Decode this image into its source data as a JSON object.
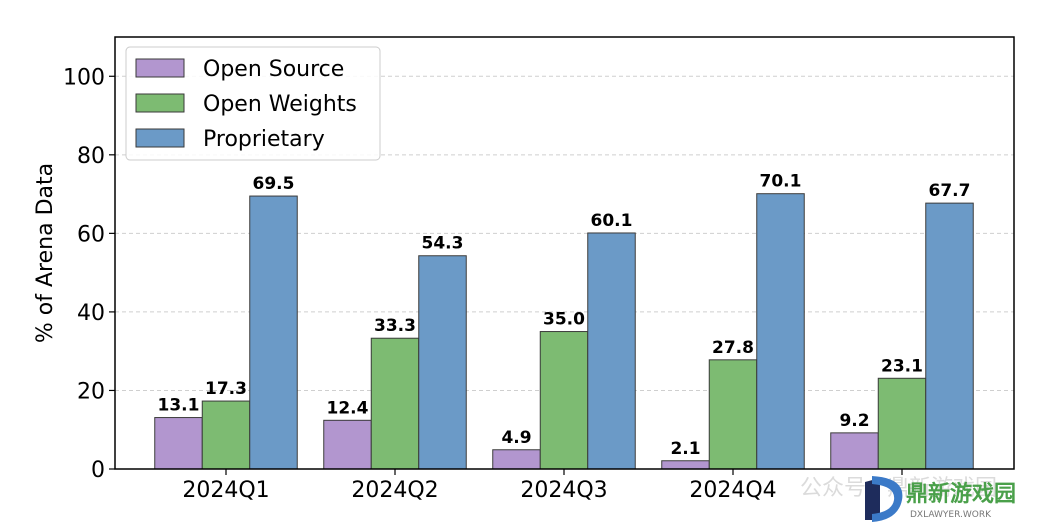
{
  "chart_data": {
    "type": "bar",
    "categories": [
      "2024Q1",
      "2024Q2",
      "2024Q3",
      "2024Q4",
      ""
    ],
    "series": [
      {
        "name": "Open Source",
        "color": "#b296cf",
        "values": [
          13.1,
          12.4,
          4.9,
          2.1,
          9.2
        ]
      },
      {
        "name": "Open Weights",
        "color": "#7dbb72",
        "values": [
          17.3,
          33.3,
          35.0,
          27.8,
          23.1
        ]
      },
      {
        "name": "Proprietary",
        "color": "#6b9ac7",
        "values": [
          69.5,
          54.3,
          60.1,
          70.1,
          67.7
        ]
      }
    ],
    "ylabel": "% of Arena Data",
    "xlabel": "",
    "ylim": [
      0,
      110
    ],
    "yticks": [
      0,
      20,
      40,
      60,
      80,
      100
    ],
    "grid": true,
    "legend_position": "top-left"
  },
  "watermark": {
    "text": "公众号 · 鼎新游戏园",
    "brand": "鼎新游戏园",
    "sub": "DXLAWYER.WORK"
  }
}
